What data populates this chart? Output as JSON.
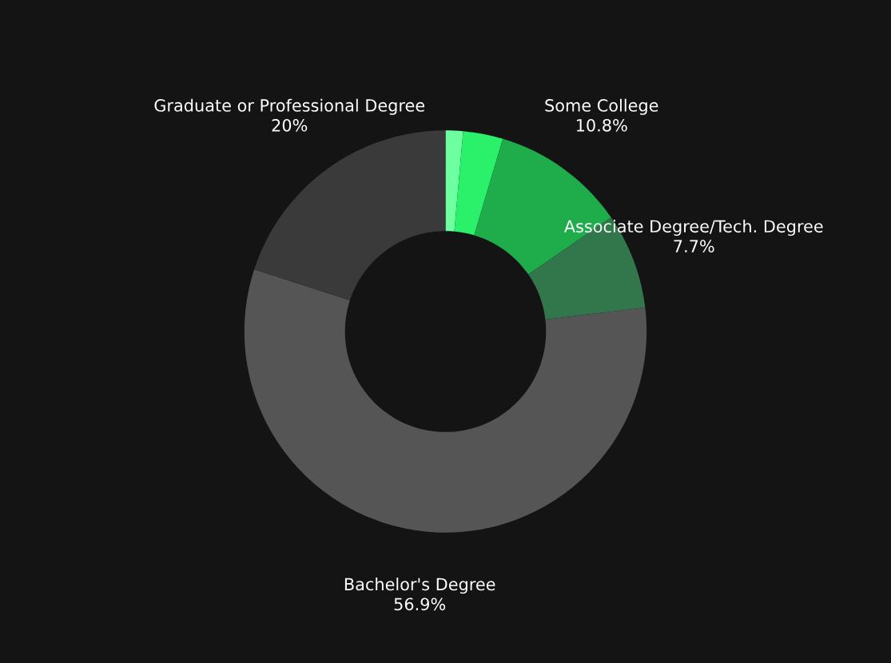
{
  "chart_data": {
    "type": "donut",
    "categories": [
      null,
      null,
      "Some College",
      "Associate Degree/Tech. Degree",
      "Bachelor's Degree",
      "Graduate or Professional Degree"
    ],
    "values": [
      1.4,
      3.2,
      10.8,
      7.7,
      56.9,
      20
    ],
    "value_labels": [
      null,
      null,
      "10.8%",
      "7.7%",
      "56.9%",
      "20%"
    ],
    "colors": [
      "#6dffa0",
      "#2af06a",
      "#1fad4c",
      "#32764b",
      "#555555",
      "#3a3a3a"
    ],
    "legend": false
  }
}
